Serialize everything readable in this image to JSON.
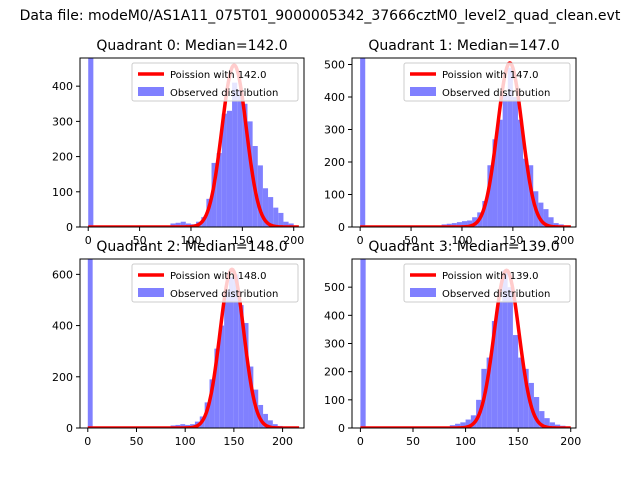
{
  "figure": {
    "suptitle": "Data file: modeM0/AS1A11_075T01_9000005342_37666cztM0_level2_quad_clean.evt"
  },
  "colors": {
    "hist_fill": "#8080ff",
    "poisson_line": "#ff0000",
    "axes": "#000000",
    "background": "#ffffff"
  },
  "chart_data": [
    {
      "type": "bar",
      "title": "Quadrant 0: Median=142.0",
      "xlim": [
        -8,
        210
      ],
      "ylim": [
        0,
        480
      ],
      "xticks": [
        0,
        50,
        100,
        150,
        200
      ],
      "yticks": [
        0,
        100,
        200,
        300,
        400
      ],
      "legend_position": "top-right",
      "grid": false,
      "series": [
        {
          "name": "Observed distribution",
          "kind": "histogram",
          "bin_width": 5,
          "bins": [
            {
              "x": 0,
              "y": 480
            },
            {
              "x": 80,
              "y": 10
            },
            {
              "x": 85,
              "y": 12
            },
            {
              "x": 90,
              "y": 15
            },
            {
              "x": 95,
              "y": 10
            },
            {
              "x": 100,
              "y": 8
            },
            {
              "x": 105,
              "y": 15
            },
            {
              "x": 110,
              "y": 28
            },
            {
              "x": 115,
              "y": 80
            },
            {
              "x": 120,
              "y": 182
            },
            {
              "x": 125,
              "y": 210
            },
            {
              "x": 130,
              "y": 322
            },
            {
              "x": 135,
              "y": 330
            },
            {
              "x": 140,
              "y": 410
            },
            {
              "x": 145,
              "y": 390
            },
            {
              "x": 150,
              "y": 350
            },
            {
              "x": 155,
              "y": 300
            },
            {
              "x": 160,
              "y": 230
            },
            {
              "x": 165,
              "y": 175
            },
            {
              "x": 170,
              "y": 110
            },
            {
              "x": 175,
              "y": 85
            },
            {
              "x": 180,
              "y": 55
            },
            {
              "x": 185,
              "y": 40
            },
            {
              "x": 190,
              "y": 15
            },
            {
              "x": 195,
              "y": 10
            }
          ]
        },
        {
          "name": "Poission with 142.0",
          "kind": "poisson-curve",
          "mean": 142.0,
          "peak": 460
        }
      ]
    },
    {
      "type": "bar",
      "title": "Quadrant 1: Median=147.0",
      "xlim": [
        -8,
        212
      ],
      "ylim": [
        0,
        520
      ],
      "xticks": [
        0,
        50,
        100,
        150,
        200
      ],
      "yticks": [
        0,
        100,
        200,
        300,
        400,
        500
      ],
      "legend_position": "top-right",
      "grid": false,
      "series": [
        {
          "name": "Observed distribution",
          "kind": "histogram",
          "bin_width": 5,
          "bins": [
            {
              "x": 0,
              "y": 520
            },
            {
              "x": 80,
              "y": 8
            },
            {
              "x": 85,
              "y": 10
            },
            {
              "x": 90,
              "y": 12
            },
            {
              "x": 95,
              "y": 15
            },
            {
              "x": 100,
              "y": 18
            },
            {
              "x": 105,
              "y": 20
            },
            {
              "x": 110,
              "y": 30
            },
            {
              "x": 115,
              "y": 45
            },
            {
              "x": 120,
              "y": 80
            },
            {
              "x": 125,
              "y": 190
            },
            {
              "x": 130,
              "y": 270
            },
            {
              "x": 135,
              "y": 330
            },
            {
              "x": 140,
              "y": 405
            },
            {
              "x": 145,
              "y": 490
            },
            {
              "x": 150,
              "y": 400
            },
            {
              "x": 155,
              "y": 330
            },
            {
              "x": 160,
              "y": 210
            },
            {
              "x": 165,
              "y": 190
            },
            {
              "x": 170,
              "y": 110
            },
            {
              "x": 175,
              "y": 75
            },
            {
              "x": 180,
              "y": 55
            },
            {
              "x": 185,
              "y": 30
            },
            {
              "x": 190,
              "y": 12
            },
            {
              "x": 195,
              "y": 8
            }
          ]
        },
        {
          "name": "Poission with 147.0",
          "kind": "poisson-curve",
          "mean": 147.0,
          "peak": 505
        }
      ]
    },
    {
      "type": "bar",
      "title": "Quadrant 2: Median=148.0",
      "xlim": [
        -8,
        222
      ],
      "ylim": [
        0,
        660
      ],
      "xticks": [
        0,
        50,
        100,
        150,
        200
      ],
      "yticks": [
        0,
        200,
        400,
        600
      ],
      "legend_position": "top-right",
      "grid": false,
      "series": [
        {
          "name": "Observed distribution",
          "kind": "histogram",
          "bin_width": 5,
          "bins": [
            {
              "x": 0,
              "y": 660
            },
            {
              "x": 85,
              "y": 10
            },
            {
              "x": 90,
              "y": 12
            },
            {
              "x": 95,
              "y": 15
            },
            {
              "x": 100,
              "y": 12
            },
            {
              "x": 105,
              "y": 15
            },
            {
              "x": 110,
              "y": 25
            },
            {
              "x": 115,
              "y": 45
            },
            {
              "x": 120,
              "y": 100
            },
            {
              "x": 125,
              "y": 190
            },
            {
              "x": 130,
              "y": 310
            },
            {
              "x": 135,
              "y": 400
            },
            {
              "x": 140,
              "y": 540
            },
            {
              "x": 145,
              "y": 590
            },
            {
              "x": 150,
              "y": 600
            },
            {
              "x": 155,
              "y": 480
            },
            {
              "x": 160,
              "y": 410
            },
            {
              "x": 165,
              "y": 240
            },
            {
              "x": 170,
              "y": 150
            },
            {
              "x": 175,
              "y": 90
            },
            {
              "x": 180,
              "y": 55
            },
            {
              "x": 185,
              "y": 30
            },
            {
              "x": 190,
              "y": 15
            },
            {
              "x": 195,
              "y": 8
            }
          ]
        },
        {
          "name": "Poission with 148.0",
          "kind": "poisson-curve",
          "mean": 148.0,
          "peak": 620
        }
      ]
    },
    {
      "type": "bar",
      "title": "Quadrant 3: Median=139.0",
      "xlim": [
        -8,
        205
      ],
      "ylim": [
        0,
        600
      ],
      "xticks": [
        0,
        50,
        100,
        150,
        200
      ],
      "yticks": [
        0,
        100,
        200,
        300,
        400,
        500
      ],
      "legend_position": "top-right",
      "grid": false,
      "series": [
        {
          "name": "Observed distribution",
          "kind": "histogram",
          "bin_width": 5,
          "bins": [
            {
              "x": 0,
              "y": 600
            },
            {
              "x": 85,
              "y": 10
            },
            {
              "x": 90,
              "y": 15
            },
            {
              "x": 95,
              "y": 20
            },
            {
              "x": 100,
              "y": 30
            },
            {
              "x": 105,
              "y": 45
            },
            {
              "x": 110,
              "y": 100
            },
            {
              "x": 115,
              "y": 210
            },
            {
              "x": 120,
              "y": 250
            },
            {
              "x": 125,
              "y": 380
            },
            {
              "x": 130,
              "y": 450
            },
            {
              "x": 135,
              "y": 560
            },
            {
              "x": 140,
              "y": 500
            },
            {
              "x": 145,
              "y": 330
            },
            {
              "x": 150,
              "y": 250
            },
            {
              "x": 155,
              "y": 210
            },
            {
              "x": 160,
              "y": 160
            },
            {
              "x": 165,
              "y": 110
            },
            {
              "x": 170,
              "y": 60
            },
            {
              "x": 175,
              "y": 35
            },
            {
              "x": 180,
              "y": 20
            },
            {
              "x": 185,
              "y": 12
            },
            {
              "x": 190,
              "y": 8
            }
          ]
        },
        {
          "name": "Poission with 139.0",
          "kind": "poisson-curve",
          "mean": 139.0,
          "peak": 560
        }
      ]
    }
  ]
}
